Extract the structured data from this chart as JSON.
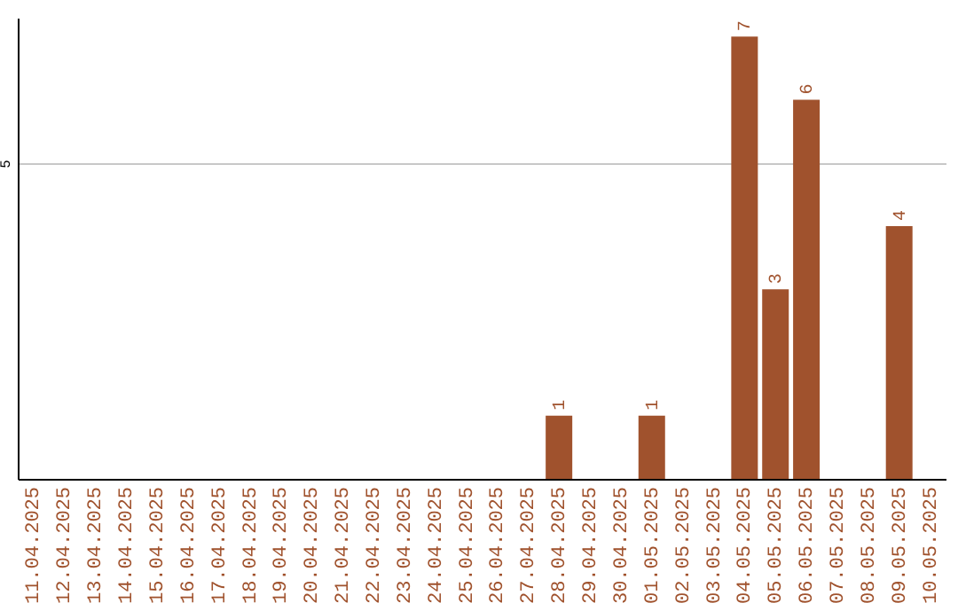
{
  "chart_data": {
    "type": "bar",
    "categories": [
      "11.04.2025",
      "12.04.2025",
      "13.04.2025",
      "14.04.2025",
      "15.04.2025",
      "16.04.2025",
      "17.04.2025",
      "18.04.2025",
      "19.04.2025",
      "20.04.2025",
      "21.04.2025",
      "22.04.2025",
      "23.04.2025",
      "24.04.2025",
      "25.04.2025",
      "26.04.2025",
      "27.04.2025",
      "28.04.2025",
      "29.04.2025",
      "30.04.2025",
      "01.05.2025",
      "02.05.2025",
      "03.05.2025",
      "04.05.2025",
      "05.05.2025",
      "06.05.2025",
      "07.05.2025",
      "08.05.2025",
      "09.05.2025",
      "10.05.2025"
    ],
    "values": [
      null,
      null,
      null,
      null,
      null,
      null,
      null,
      null,
      null,
      null,
      null,
      null,
      null,
      null,
      null,
      null,
      null,
      1,
      null,
      null,
      1,
      null,
      null,
      7,
      3,
      6,
      null,
      null,
      4,
      null
    ],
    "data_labels": true,
    "color": "#a0522d",
    "ylim": [
      0,
      7.3
    ],
    "yticks": [
      5
    ],
    "grid": "y"
  }
}
